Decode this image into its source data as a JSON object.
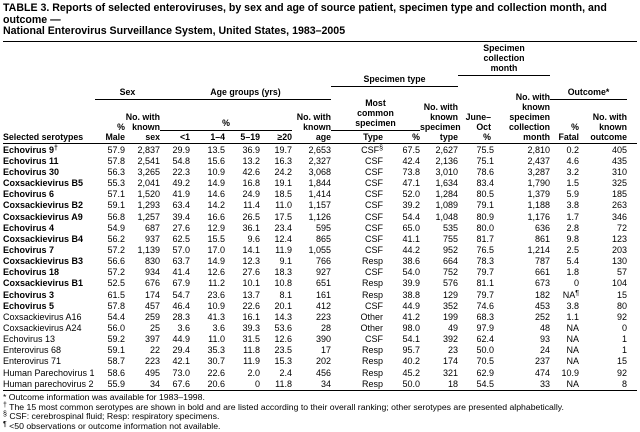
{
  "title": "TABLE 3. Reports of selected enteroviruses, by sex and age of source patient, specimen type and collection month, and outcome —\nNational Enterovirus Surveillance System, United States, 1983–2005",
  "table": {
    "header": {
      "serotypes": "Selected serotypes",
      "group_sex": "Sex",
      "pct_male": "%\nMale",
      "known_sex": "No. with\nknown\nsex",
      "group_age": "Age groups (yrs)",
      "age_pct_sub": "%",
      "age_lt1": "<1",
      "age_1_4": "1–4",
      "age_5_19": "5–19",
      "age_ge20": "≥20",
      "known_age": "No. with\nknown\nage",
      "group_specimen_type": "Specimen type",
      "most_common": "Most\ncommon\nspecimen",
      "type_label": "Type",
      "type_pct": "%",
      "known_specimen_type": "No. with\nknown\nspecimen\ntype",
      "group_collection_month": "Specimen\ncollection\nmonth",
      "june_oct": "June–\nOct\n%",
      "known_collection_month": "No. with\nknown\nspecimen\ncollection\nmonth",
      "group_outcome": "Outcome*",
      "pct_fatal": "%\nFatal",
      "known_outcome": "No. with\nknown\noutcome"
    },
    "column_keys": [
      "serotype",
      "pct-male",
      "known-sex",
      "age-lt1",
      "age-1-4",
      "age-5-19",
      "age-ge20",
      "known-age",
      "specimen-type",
      "specimen-pct",
      "known-specimen-type",
      "june-oct-pct",
      "known-collection-month",
      "pct-fatal",
      "known-outcome"
    ],
    "rows": [
      {
        "bold": true,
        "cells": [
          "Echovirus 9†",
          "57.9",
          "2,837",
          "29.9",
          "13.5",
          "36.9",
          "19.7",
          "2,653",
          "CSF§",
          "67.5",
          "2,627",
          "75.5",
          "2,810",
          "0.2",
          "405"
        ]
      },
      {
        "bold": true,
        "cells": [
          "Echovirus 11",
          "57.8",
          "2,541",
          "54.8",
          "15.6",
          "13.2",
          "16.3",
          "2,327",
          "CSF",
          "42.4",
          "2,136",
          "75.1",
          "2,437",
          "4.6",
          "435"
        ]
      },
      {
        "bold": true,
        "cells": [
          "Echovirus 30",
          "56.3",
          "3,265",
          "22.3",
          "10.9",
          "42.6",
          "24.2",
          "3,068",
          "CSF",
          "73.8",
          "3,010",
          "78.6",
          "3,287",
          "3.2",
          "310"
        ]
      },
      {
        "bold": true,
        "cells": [
          "Coxsackievirus B5",
          "55.3",
          "2,041",
          "49.2",
          "14.9",
          "16.8",
          "19.1",
          "1,844",
          "CSF",
          "47.1",
          "1,634",
          "83.4",
          "1,790",
          "1.5",
          "325"
        ]
      },
      {
        "bold": true,
        "cells": [
          "Echovirus 6",
          "57.1",
          "1,520",
          "41.9",
          "14.6",
          "24.9",
          "18.5",
          "1,414",
          "CSF",
          "52.0",
          "1,284",
          "80.5",
          "1,379",
          "5.9",
          "185"
        ]
      },
      {
        "bold": true,
        "cells": [
          "Coxsackievirus B2",
          "59.1",
          "1,293",
          "63.4",
          "14.2",
          "11.4",
          "11.0",
          "1,157",
          "CSF",
          "39.2",
          "1,089",
          "79.1",
          "1,188",
          "3.8",
          "263"
        ]
      },
      {
        "bold": true,
        "cells": [
          "Coxsackievirus A9",
          "56.8",
          "1,257",
          "39.4",
          "16.6",
          "26.5",
          "17.5",
          "1,126",
          "CSF",
          "54.4",
          "1,048",
          "80.9",
          "1,176",
          "1.7",
          "346"
        ]
      },
      {
        "bold": true,
        "cells": [
          "Echovirus 4",
          "54.9",
          "687",
          "27.6",
          "12.9",
          "36.1",
          "23.4",
          "595",
          "CSF",
          "65.0",
          "535",
          "80.0",
          "636",
          "2.8",
          "72"
        ]
      },
      {
        "bold": true,
        "cells": [
          "Coxsackievirus B4",
          "56.2",
          "937",
          "62.5",
          "15.5",
          "9.6",
          "12.4",
          "865",
          "CSF",
          "41.1",
          "755",
          "81.7",
          "861",
          "9.8",
          "123"
        ]
      },
      {
        "bold": true,
        "cells": [
          "Echovirus 7",
          "57.2",
          "1,139",
          "57.0",
          "17.0",
          "14.1",
          "11.9",
          "1,055",
          "CSF",
          "44.2",
          "952",
          "76.5",
          "1,214",
          "2.5",
          "203"
        ]
      },
      {
        "bold": true,
        "cells": [
          "Coxsackievirus B3",
          "56.6",
          "830",
          "63.7",
          "14.9",
          "12.3",
          "9.1",
          "766",
          "Resp",
          "38.6",
          "664",
          "78.3",
          "787",
          "5.4",
          "130"
        ]
      },
      {
        "bold": true,
        "cells": [
          "Echovirus 18",
          "57.2",
          "934",
          "41.4",
          "12.6",
          "27.6",
          "18.3",
          "927",
          "CSF",
          "54.0",
          "752",
          "79.7",
          "661",
          "1.8",
          "57"
        ]
      },
      {
        "bold": true,
        "cells": [
          "Coxsackievirus B1",
          "52.5",
          "676",
          "67.9",
          "11.2",
          "10.1",
          "10.8",
          "651",
          "Resp",
          "39.9",
          "576",
          "81.1",
          "673",
          "0",
          "104"
        ]
      },
      {
        "bold": true,
        "cells": [
          "Echovirus 3",
          "61.5",
          "174",
          "54.7",
          "23.6",
          "13.7",
          "8.1",
          "161",
          "Resp",
          "38.8",
          "129",
          "79.7",
          "182",
          "NA¶",
          "15"
        ]
      },
      {
        "bold": true,
        "cells": [
          "Echovirus 5",
          "57.8",
          "457",
          "46.4",
          "10.9",
          "22.6",
          "20.1",
          "412",
          "CSF",
          "44.9",
          "352",
          "74.6",
          "453",
          "3.8",
          "80"
        ]
      },
      {
        "bold": false,
        "cells": [
          "Coxsackievirus A16",
          "54.4",
          "259",
          "28.3",
          "41.3",
          "16.1",
          "14.3",
          "223",
          "Other",
          "41.2",
          "199",
          "68.3",
          "252",
          "1.1",
          "92"
        ]
      },
      {
        "bold": false,
        "cells": [
          "Coxsackievirus A24",
          "56.0",
          "25",
          "3.6",
          "3.6",
          "39.3",
          "53.6",
          "28",
          "Other",
          "98.0",
          "49",
          "97.9",
          "48",
          "NA",
          "0"
        ]
      },
      {
        "bold": false,
        "cells": [
          "Echovirus 13",
          "59.2",
          "397",
          "44.9",
          "11.0",
          "31.5",
          "12.6",
          "390",
          "CSF",
          "54.1",
          "392",
          "62.4",
          "93",
          "NA",
          "1"
        ]
      },
      {
        "bold": false,
        "cells": [
          "Enterovirus 68",
          "59.1",
          "22",
          "29.4",
          "35.3",
          "11.8",
          "23.5",
          "17",
          "Resp",
          "95.7",
          "23",
          "50.0",
          "24",
          "NA",
          "1"
        ]
      },
      {
        "bold": false,
        "cells": [
          "Enterovirus 71",
          "58.7",
          "223",
          "42.1",
          "30.7",
          "11.9",
          "15.3",
          "202",
          "Resp",
          "40.2",
          "174",
          "70.5",
          "237",
          "NA",
          "15"
        ]
      },
      {
        "bold": false,
        "cells": [
          "Human Parechovirus 1",
          "58.6",
          "495",
          "73.0",
          "22.6",
          "2.0",
          "2.4",
          "456",
          "Resp",
          "45.2",
          "321",
          "62.9",
          "474",
          "10.9",
          "92"
        ]
      },
      {
        "bold": false,
        "cells": [
          "Human parechovirus 2",
          "55.9",
          "34",
          "67.6",
          "20.6",
          "0",
          "11.8",
          "34",
          "Resp",
          "50.0",
          "18",
          "54.5",
          "33",
          "NA",
          "8"
        ]
      }
    ],
    "footnotes": [
      "* Outcome information was available for 1983–1998.",
      "† The 15 most common serotypes are shown in bold and are listed according to their overall ranking; other serotypes are presented alphabetically.",
      "§ CSF: cerebrospinal fluid; Resp: respiratory specimens.",
      "¶ <50 observations or outcome information not available."
    ]
  }
}
